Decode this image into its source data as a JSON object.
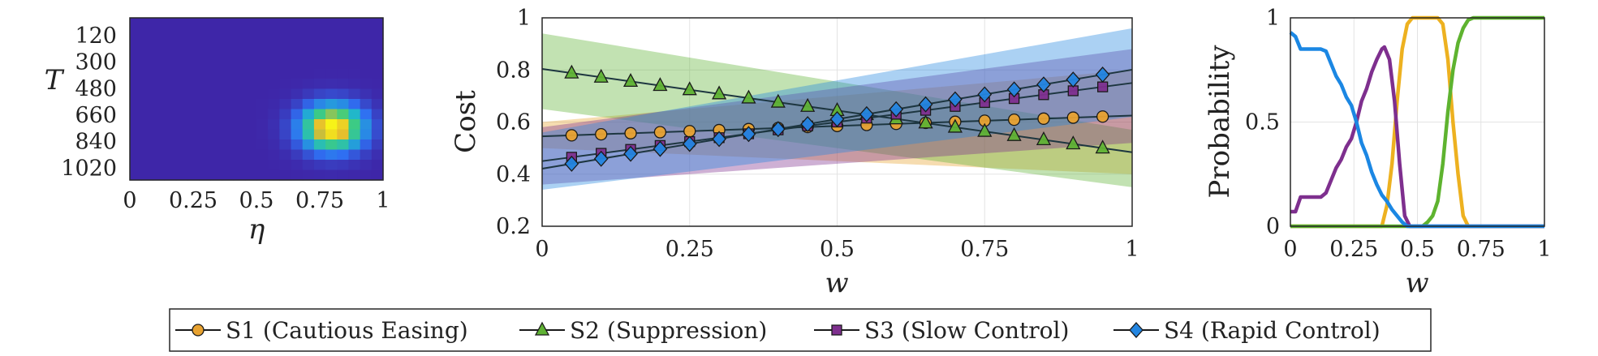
{
  "chart_data": [
    {
      "type": "heatmap",
      "xlabel": "η",
      "ylabel": "T",
      "x_ticks": [
        "0",
        "0.25",
        "0.5",
        "0.75",
        "1"
      ],
      "y_ticks": [
        "120",
        "300",
        "480",
        "660",
        "840",
        "1020"
      ],
      "xlim": [
        0,
        1
      ],
      "ylim": [
        0,
        1100
      ],
      "peak": {
        "eta": 0.8,
        "T": 745
      },
      "colormap": [
        "#3e26a8",
        "#2f6ff2",
        "#1fb6ce",
        "#3fcd7e",
        "#e5bb2e",
        "#f9fb15"
      ]
    },
    {
      "type": "line",
      "ylabel": "Cost",
      "xlabel": "w",
      "xlim": [
        0,
        1
      ],
      "ylim": [
        0.2,
        1
      ],
      "x_ticks": [
        "0",
        "0.25",
        "0.5",
        "0.75",
        "1"
      ],
      "y_ticks": [
        "0.2",
        "0.4",
        "0.6",
        "0.8",
        "1"
      ],
      "grid": true,
      "x": [
        0.05,
        0.1,
        0.15,
        0.2,
        0.25,
        0.3,
        0.35,
        0.4,
        0.45,
        0.5,
        0.55,
        0.6,
        0.65,
        0.7,
        0.75,
        0.8,
        0.85,
        0.9,
        0.95
      ],
      "series": [
        {
          "name": "S1 (Cautious Easing)",
          "marker": "circle",
          "color": "#e8a230",
          "values": [
            0.549,
            0.553,
            0.557,
            0.561,
            0.565,
            0.569,
            0.573,
            0.577,
            0.581,
            0.585,
            0.589,
            0.593,
            0.597,
            0.601,
            0.605,
            0.609,
            0.613,
            0.617,
            0.621
          ],
          "band": [
            [
              0.5,
              0.6
            ],
            [
              0.4,
              0.8
            ]
          ]
        },
        {
          "name": "S2 (Suppression)",
          "marker": "triangle",
          "color": "#5fb234",
          "values": [
            0.788,
            0.772,
            0.756,
            0.74,
            0.724,
            0.708,
            0.692,
            0.676,
            0.66,
            0.644,
            0.628,
            0.612,
            0.596,
            0.58,
            0.564,
            0.548,
            0.532,
            0.516,
            0.5
          ],
          "band": [
            [
              0.65,
              0.94
            ],
            [
              0.35,
              0.57
            ]
          ]
        },
        {
          "name": "S3 (Slow Control)",
          "marker": "square",
          "color": "#7e2f8e",
          "values": [
            0.465,
            0.48,
            0.495,
            0.51,
            0.525,
            0.54,
            0.555,
            0.57,
            0.585,
            0.6,
            0.615,
            0.63,
            0.645,
            0.66,
            0.675,
            0.69,
            0.705,
            0.72,
            0.735
          ],
          "band": [
            [
              0.36,
              0.58
            ],
            [
              0.52,
              0.88
            ]
          ]
        },
        {
          "name": "S4 (Rapid Control)",
          "marker": "diamond",
          "color": "#2385e0",
          "values": [
            0.44,
            0.459,
            0.478,
            0.497,
            0.516,
            0.535,
            0.554,
            0.573,
            0.592,
            0.611,
            0.63,
            0.649,
            0.668,
            0.687,
            0.706,
            0.725,
            0.744,
            0.763,
            0.782
          ],
          "band": [
            [
              0.34,
              0.56
            ],
            [
              0.62,
              0.96
            ]
          ]
        }
      ],
      "legend": {
        "placement": "bottom",
        "entries": [
          "S1 (Cautious Easing)",
          "S2 (Suppression)",
          "S3 (Slow Control)",
          "S4 (Rapid Control)"
        ]
      }
    },
    {
      "type": "line",
      "ylabel": "Probability",
      "xlabel": "w",
      "xlim": [
        0,
        1
      ],
      "ylim": [
        0,
        1
      ],
      "x_ticks": [
        "0",
        "0.25",
        "0.5",
        "0.75",
        "1"
      ],
      "y_ticks": [
        "0",
        "0.5",
        "1"
      ],
      "grid": true,
      "series": [
        {
          "name": "S1 (Cautious Easing)",
          "color": "#edb120",
          "points": [
            [
              0,
              0
            ],
            [
              0.36,
              0
            ],
            [
              0.38,
              0.1
            ],
            [
              0.4,
              0.3
            ],
            [
              0.42,
              0.6
            ],
            [
              0.44,
              0.85
            ],
            [
              0.46,
              0.97
            ],
            [
              0.48,
              1.0
            ],
            [
              0.58,
              1.0
            ],
            [
              0.6,
              0.97
            ],
            [
              0.62,
              0.8
            ],
            [
              0.64,
              0.5
            ],
            [
              0.66,
              0.25
            ],
            [
              0.68,
              0.05
            ],
            [
              0.7,
              0
            ],
            [
              1.0,
              0
            ]
          ]
        },
        {
          "name": "S2 (Suppression)",
          "color": "#5eb32f",
          "points": [
            [
              0,
              0
            ],
            [
              0.52,
              0
            ],
            [
              0.54,
              0.02
            ],
            [
              0.56,
              0.05
            ],
            [
              0.58,
              0.12
            ],
            [
              0.6,
              0.3
            ],
            [
              0.62,
              0.55
            ],
            [
              0.64,
              0.75
            ],
            [
              0.66,
              0.88
            ],
            [
              0.68,
              0.95
            ],
            [
              0.7,
              0.99
            ],
            [
              0.72,
              1.0
            ],
            [
              1.0,
              1.0
            ]
          ]
        },
        {
          "name": "S3 (Slow Control)",
          "color": "#7e2f8e",
          "points": [
            [
              0,
              0.07
            ],
            [
              0.02,
              0.07
            ],
            [
              0.04,
              0.14
            ],
            [
              0.12,
              0.14
            ],
            [
              0.14,
              0.16
            ],
            [
              0.16,
              0.22
            ],
            [
              0.18,
              0.28
            ],
            [
              0.2,
              0.32
            ],
            [
              0.22,
              0.38
            ],
            [
              0.24,
              0.42
            ],
            [
              0.26,
              0.5
            ],
            [
              0.28,
              0.6
            ],
            [
              0.3,
              0.66
            ],
            [
              0.32,
              0.74
            ],
            [
              0.34,
              0.8
            ],
            [
              0.36,
              0.85
            ],
            [
              0.37,
              0.86
            ],
            [
              0.39,
              0.8
            ],
            [
              0.41,
              0.6
            ],
            [
              0.43,
              0.3
            ],
            [
              0.45,
              0.05
            ],
            [
              0.47,
              0
            ],
            [
              1.0,
              0
            ]
          ]
        },
        {
          "name": "S4 (Rapid Control)",
          "color": "#1b87e3",
          "points": [
            [
              0,
              0.93
            ],
            [
              0.02,
              0.91
            ],
            [
              0.04,
              0.85
            ],
            [
              0.12,
              0.85
            ],
            [
              0.14,
              0.84
            ],
            [
              0.16,
              0.78
            ],
            [
              0.18,
              0.72
            ],
            [
              0.2,
              0.68
            ],
            [
              0.22,
              0.62
            ],
            [
              0.24,
              0.58
            ],
            [
              0.26,
              0.5
            ],
            [
              0.28,
              0.4
            ],
            [
              0.3,
              0.34
            ],
            [
              0.32,
              0.26
            ],
            [
              0.34,
              0.2
            ],
            [
              0.36,
              0.15
            ],
            [
              0.38,
              0.12
            ],
            [
              0.4,
              0.08
            ],
            [
              0.42,
              0.05
            ],
            [
              0.44,
              0.02
            ],
            [
              0.46,
              0
            ],
            [
              1.0,
              0
            ]
          ]
        }
      ]
    }
  ]
}
